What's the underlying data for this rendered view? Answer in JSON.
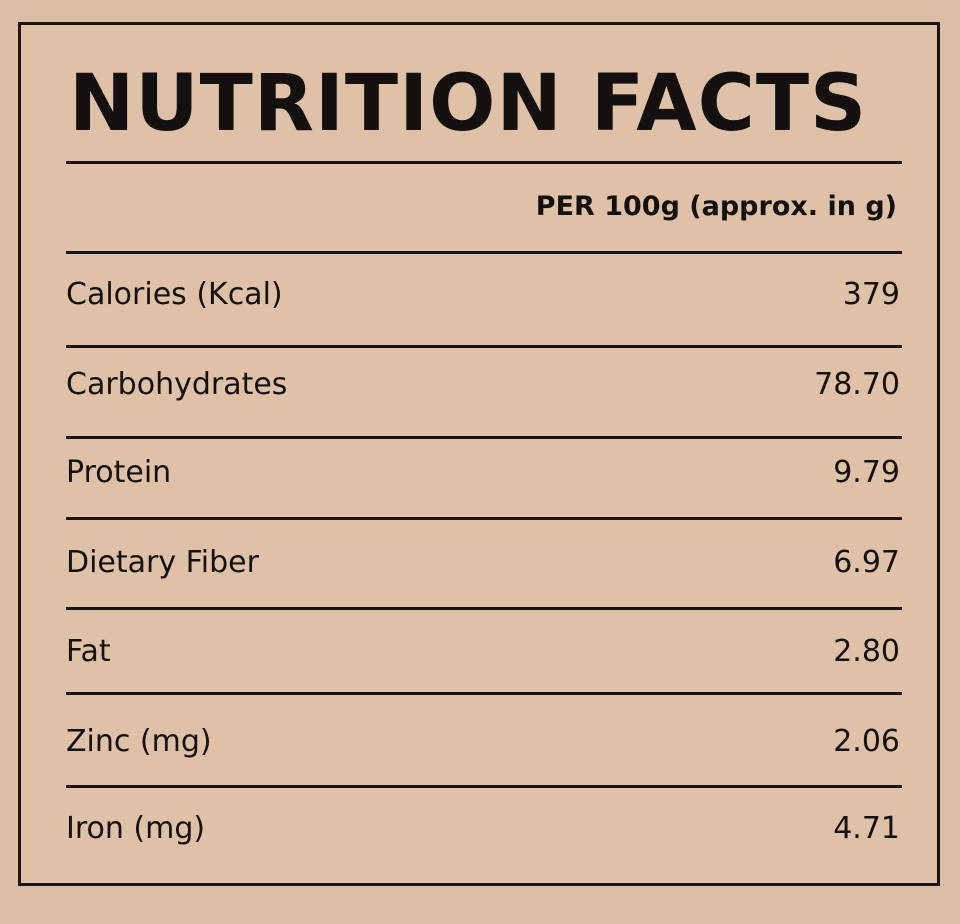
{
  "title": "NUTRITION FACTS",
  "table": {
    "header": "PER 100g (approx. in g)",
    "rows": [
      [
        "Calories (Kcal)",
        "379"
      ],
      [
        "Carbohydrates",
        "78.70"
      ],
      [
        "Protein",
        "9.79"
      ],
      [
        "Dietary Fiber",
        "6.97"
      ],
      [
        "Fat",
        "2.80"
      ],
      [
        "Zinc (mg)",
        "2.06"
      ],
      [
        "Iron (mg)",
        "4.71"
      ]
    ]
  }
}
